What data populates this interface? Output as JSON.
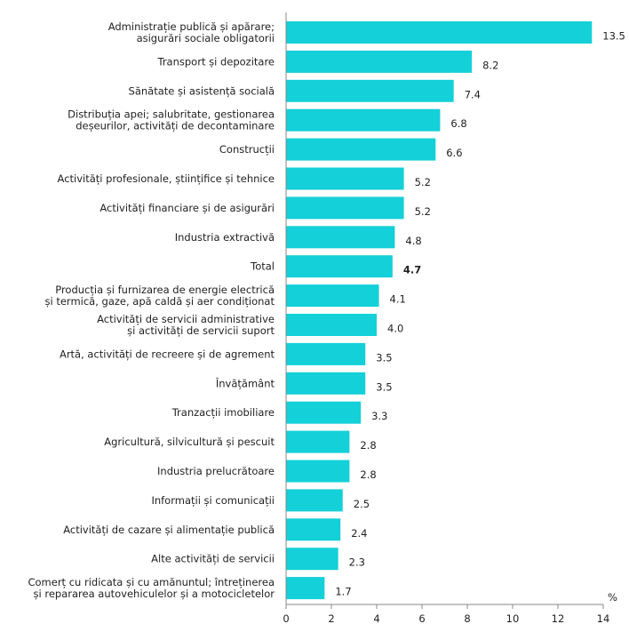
{
  "chart_data": {
    "type": "bar",
    "orientation": "horizontal",
    "unit_label": "%",
    "xlim": [
      0,
      14
    ],
    "xticks": [
      "0",
      "2",
      "4",
      "6",
      "8",
      "10",
      "12",
      "14"
    ],
    "bar_color": "#14d0d8",
    "grid": false,
    "categories": [
      "Administrație publică și apărare;\nasigurări sociale obligatorii",
      "Transport și depozitare",
      "Sănătate și asistență socială",
      "Distribuția apei; salubritate, gestionarea\ndeșeurilor, activități de decontaminare",
      "Construcții",
      "Activități profesionale, științifice și tehnice",
      "Activități financiare și de asigurări",
      "Industria extractivă",
      "Total",
      "Producția și furnizarea de energie electrică\nși termică, gaze, apă caldă și aer condiționat",
      "Activități de servicii administrative\nși activități de servicii suport",
      "Artă, activități de recreere și de agrement",
      "Învățământ",
      "Tranzacții imobiliare",
      "Agricultură, silvicultură și pescuit",
      "Industria prelucrătoare",
      "Informații și comunicații",
      "Activități de cazare și alimentație publică",
      "Alte activități de servicii",
      "Comerț cu ridicata și cu amănuntul; întreținerea\nși repararea autovehiculelor și a motocicletelor"
    ],
    "values": [
      13.5,
      8.2,
      7.4,
      6.8,
      6.6,
      5.2,
      5.2,
      4.8,
      4.7,
      4.1,
      4.0,
      3.5,
      3.5,
      3.3,
      2.8,
      2.8,
      2.5,
      2.4,
      2.3,
      1.7
    ],
    "value_labels": [
      "13.5",
      "8.2",
      "7.4",
      "6.8",
      "6.6",
      "5.2",
      "5.2",
      "4.8",
      "4.7",
      "4.1",
      "4.0",
      "3.5",
      "3.5",
      "3.3",
      "2.8",
      "2.8",
      "2.5",
      "2.4",
      "2.3",
      "1.7"
    ],
    "highlight_category": "Total"
  }
}
